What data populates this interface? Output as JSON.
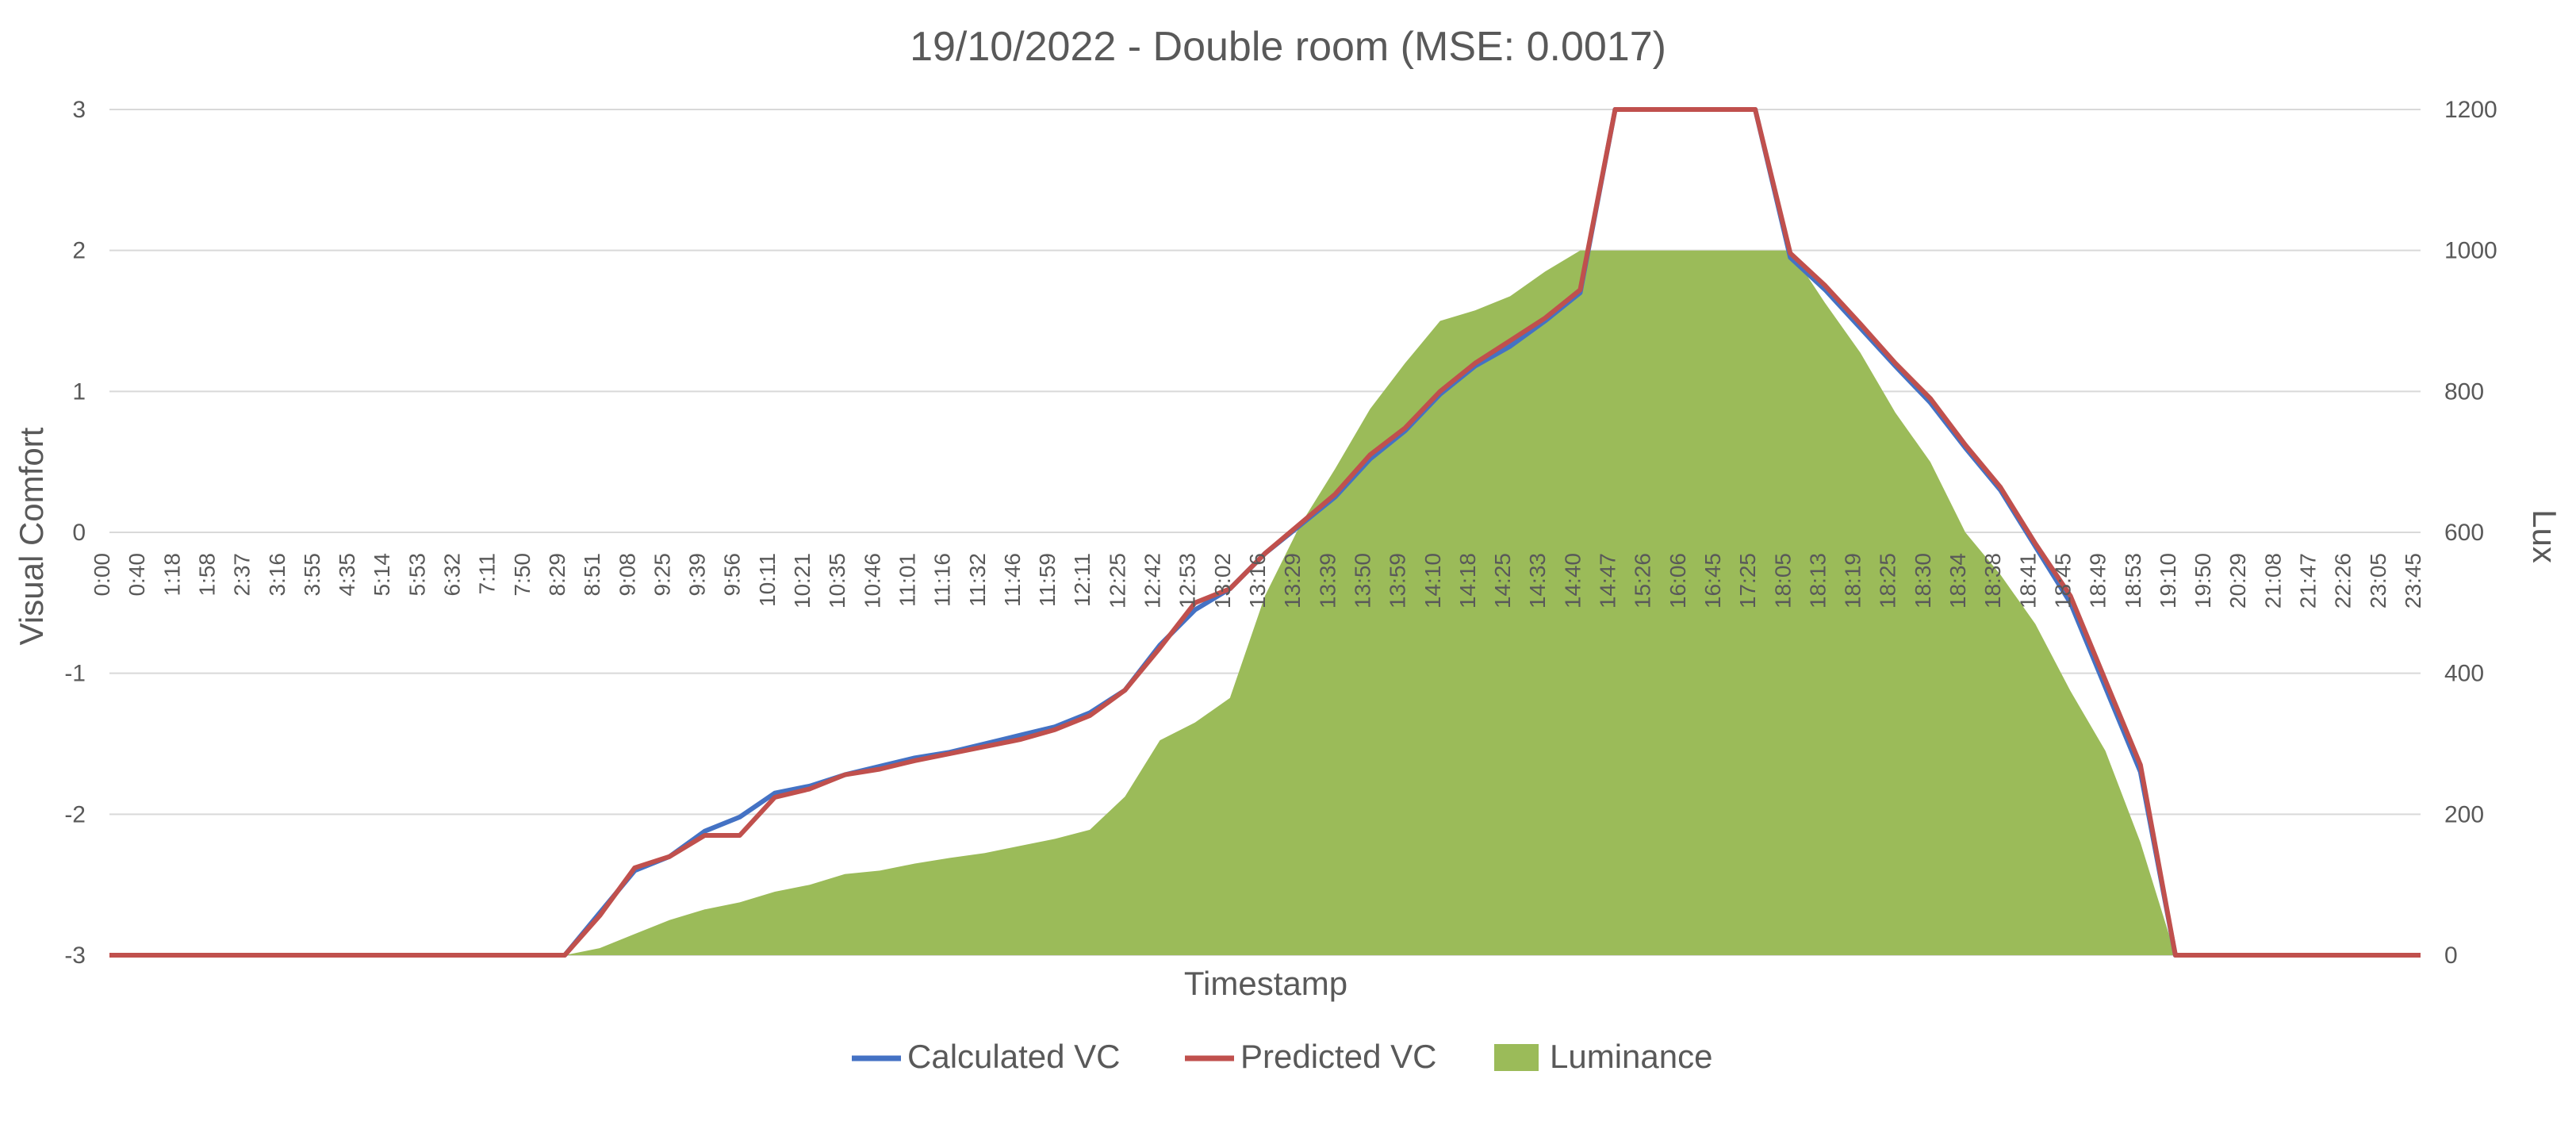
{
  "chart_data": {
    "type": "line",
    "title": "19/10/2022 - Double room (MSE: 0.0017)",
    "xlabel": "Timestamp",
    "ylabel": "Visual Comfort",
    "y2label": "Lux",
    "ylim": [
      -3,
      3
    ],
    "y2lim": [
      0,
      1200
    ],
    "yticks": [
      "-3",
      "-2",
      "-1",
      "0",
      "1",
      "2",
      "3"
    ],
    "y2ticks": [
      "0",
      "200",
      "400",
      "600",
      "800",
      "1000",
      "1200"
    ],
    "grid": true,
    "legend_position": "bottom",
    "categories": [
      "0:00",
      "0:40",
      "1:18",
      "1:58",
      "2:37",
      "3:16",
      "3:55",
      "4:35",
      "5:14",
      "5:53",
      "6:32",
      "7:11",
      "7:50",
      "8:29",
      "8:51",
      "9:08",
      "9:25",
      "9:39",
      "9:56",
      "10:11",
      "10:21",
      "10:35",
      "10:46",
      "11:01",
      "11:16",
      "11:32",
      "11:46",
      "11:59",
      "12:11",
      "12:25",
      "12:42",
      "12:53",
      "13:02",
      "13:16",
      "13:29",
      "13:39",
      "13:50",
      "13:59",
      "14:10",
      "14:18",
      "14:25",
      "14:33",
      "14:40",
      "14:47",
      "15:26",
      "16:06",
      "16:45",
      "17:25",
      "18:05",
      "18:13",
      "18:19",
      "18:25",
      "18:30",
      "18:34",
      "18:38",
      "18:41",
      "18:45",
      "18:49",
      "18:53",
      "19:10",
      "19:50",
      "20:29",
      "21:08",
      "21:47",
      "22:26",
      "23:05",
      "23:45"
    ],
    "series": [
      {
        "name": "Calculated VC",
        "axis": "left",
        "kind": "line",
        "color": "#4472c4",
        "values": [
          -3,
          -3,
          -3,
          -3,
          -3,
          -3,
          -3,
          -3,
          -3,
          -3,
          -3,
          -3,
          -3,
          -3,
          -2.7,
          -2.4,
          -2.3,
          -2.12,
          -2.02,
          -1.85,
          -1.8,
          -1.72,
          -1.66,
          -1.6,
          -1.56,
          -1.5,
          -1.44,
          -1.38,
          -1.28,
          -1.12,
          -0.8,
          -0.55,
          -0.4,
          -0.15,
          0.05,
          0.25,
          0.52,
          0.72,
          0.98,
          1.18,
          1.32,
          1.5,
          1.7,
          3,
          3,
          3,
          3,
          3,
          1.95,
          1.72,
          1.45,
          1.18,
          0.92,
          0.6,
          0.3,
          -0.1,
          -0.5,
          -1.1,
          -1.7,
          -3,
          -3,
          -3,
          -3,
          -3,
          -3,
          -3,
          -3
        ]
      },
      {
        "name": "Predicted VC",
        "axis": "left",
        "kind": "line",
        "color": "#c0504d",
        "values": [
          -3,
          -3,
          -3,
          -3,
          -3,
          -3,
          -3,
          -3,
          -3,
          -3,
          -3,
          -3,
          -3,
          -3,
          -2.72,
          -2.38,
          -2.3,
          -2.15,
          -2.15,
          -1.88,
          -1.82,
          -1.72,
          -1.68,
          -1.62,
          -1.57,
          -1.52,
          -1.47,
          -1.4,
          -1.3,
          -1.12,
          -0.82,
          -0.5,
          -0.4,
          -0.15,
          0.06,
          0.27,
          0.55,
          0.74,
          1.0,
          1.2,
          1.36,
          1.52,
          1.72,
          3,
          3,
          3,
          3,
          3,
          1.98,
          1.75,
          1.48,
          1.2,
          0.95,
          0.62,
          0.32,
          -0.08,
          -0.45,
          -1.05,
          -1.65,
          -3,
          -3,
          -3,
          -3,
          -3,
          -3,
          -3,
          -3
        ]
      },
      {
        "name": "Luminance",
        "axis": "right",
        "kind": "area",
        "color": "#9bbb59",
        "values": [
          0,
          0,
          0,
          0,
          0,
          0,
          0,
          0,
          0,
          0,
          0,
          0,
          0,
          0,
          10,
          30,
          50,
          65,
          75,
          90,
          100,
          115,
          120,
          130,
          138,
          145,
          155,
          165,
          178,
          225,
          305,
          330,
          365,
          510,
          610,
          690,
          775,
          840,
          900,
          915,
          935,
          970,
          1000,
          1000,
          1000,
          1000,
          1000,
          1000,
          1000,
          925,
          855,
          770,
          700,
          600,
          540,
          470,
          375,
          290,
          160,
          0,
          0,
          0,
          0,
          0,
          0,
          0,
          0
        ]
      }
    ]
  }
}
